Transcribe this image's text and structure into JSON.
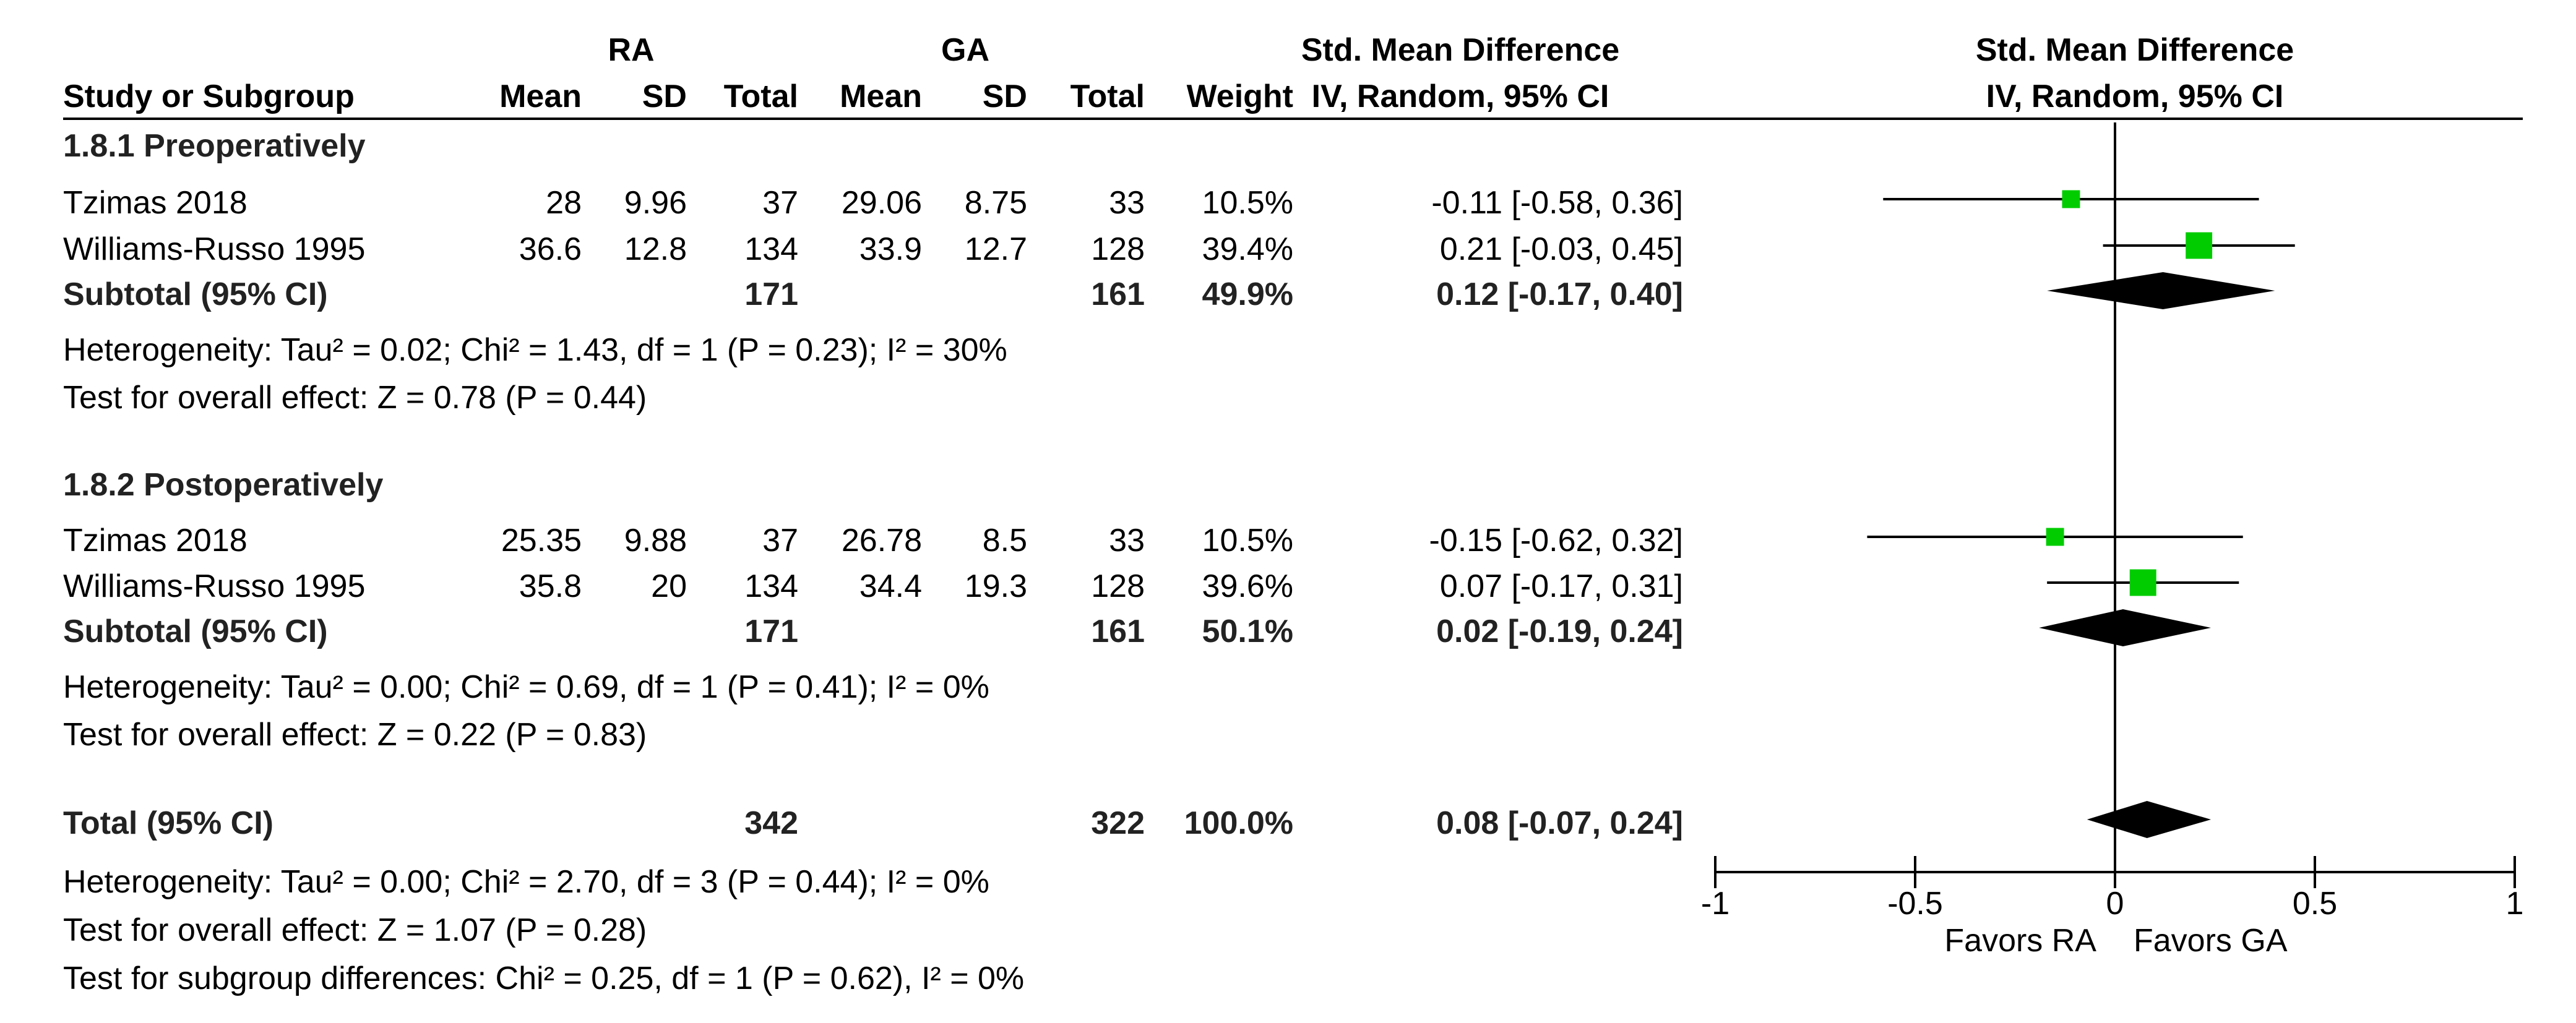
{
  "header": {
    "ra": "RA",
    "ga": "GA",
    "smd_title": "Std. Mean Difference",
    "smd_method": "IV, Random, 95% CI",
    "columns": [
      "Study or Subgroup",
      "Mean",
      "SD",
      "Total",
      "Mean",
      "SD",
      "Total",
      "Weight"
    ]
  },
  "groups": [
    {
      "title": "1.8.1 Preoperatively",
      "studies": [
        {
          "name": "Tzimas 2018",
          "ra_mean": "28",
          "ra_sd": "9.96",
          "ra_total": "37",
          "ga_mean": "29.06",
          "ga_sd": "8.75",
          "ga_total": "33",
          "weight": "10.5%",
          "ci": "-0.11 [-0.58, 0.36]"
        },
        {
          "name": "Williams-Russo 1995",
          "ra_mean": "36.6",
          "ra_sd": "12.8",
          "ra_total": "134",
          "ga_mean": "33.9",
          "ga_sd": "12.7",
          "ga_total": "128",
          "weight": "39.4%",
          "ci": "0.21 [-0.03, 0.45]"
        }
      ],
      "subtotal": {
        "label": "Subtotal (95% CI)",
        "ra_total": "171",
        "ga_total": "161",
        "weight": "49.9%",
        "ci": "0.12 [-0.17, 0.40]"
      },
      "heterogeneity": "Heterogeneity: Tau² = 0.02; Chi² = 1.43, df = 1 (P = 0.23); I² = 30%",
      "overall": "Test for overall effect: Z = 0.78 (P = 0.44)"
    },
    {
      "title": "1.8.2 Postoperatively",
      "studies": [
        {
          "name": "Tzimas 2018",
          "ra_mean": "25.35",
          "ra_sd": "9.88",
          "ra_total": "37",
          "ga_mean": "26.78",
          "ga_sd": "8.5",
          "ga_total": "33",
          "weight": "10.5%",
          "ci": "-0.15 [-0.62, 0.32]"
        },
        {
          "name": "Williams-Russo 1995",
          "ra_mean": "35.8",
          "ra_sd": "20",
          "ra_total": "134",
          "ga_mean": "34.4",
          "ga_sd": "19.3",
          "ga_total": "128",
          "weight": "39.6%",
          "ci": "0.07 [-0.17, 0.31]"
        }
      ],
      "subtotal": {
        "label": "Subtotal (95% CI)",
        "ra_total": "171",
        "ga_total": "161",
        "weight": "50.1%",
        "ci": "0.02 [-0.19, 0.24]"
      },
      "heterogeneity": "Heterogeneity: Tau² = 0.00; Chi² = 0.69, df = 1 (P = 0.41); I² = 0%",
      "overall": "Test for overall effect: Z = 0.22 (P = 0.83)"
    }
  ],
  "total": {
    "label": "Total (95% CI)",
    "ra_total": "342",
    "ga_total": "322",
    "weight": "100.0%",
    "ci": "0.08 [-0.07, 0.24]"
  },
  "footer": {
    "heterogeneity": "Heterogeneity: Tau² = 0.00; Chi² = 2.70, df = 3 (P = 0.44); I² = 0%",
    "overall": "Test for overall effect: Z = 1.07 (P = 0.28)",
    "subgroup": "Test for subgroup differences: Chi² = 0.25, df = 1 (P = 0.62), I² = 0%"
  },
  "colors": {
    "marker": "#00cc00",
    "line": "#000000"
  },
  "chart_data": {
    "type": "forest",
    "title": "Std. Mean Difference",
    "subtitle": "IV, Random, 95% CI",
    "xlim": [
      -1,
      1
    ],
    "ticks": [
      -1,
      -0.5,
      0,
      0.5,
      1
    ],
    "tick_labels": [
      "-1",
      "-0.5",
      "0",
      "0.5",
      "1"
    ],
    "favors_left": "Favors RA",
    "favors_right": "Favors GA",
    "studies": [
      {
        "group": "1.8.1 Preoperatively",
        "name": "Tzimas 2018",
        "est": -0.11,
        "lo": -0.58,
        "hi": 0.36,
        "weight": 10.5
      },
      {
        "group": "1.8.1 Preoperatively",
        "name": "Williams-Russo 1995",
        "est": 0.21,
        "lo": -0.03,
        "hi": 0.45,
        "weight": 39.4
      },
      {
        "group": "1.8.2 Postoperatively",
        "name": "Tzimas 2018",
        "est": -0.15,
        "lo": -0.62,
        "hi": 0.32,
        "weight": 10.5
      },
      {
        "group": "1.8.2 Postoperatively",
        "name": "Williams-Russo 1995",
        "est": 0.07,
        "lo": -0.17,
        "hi": 0.31,
        "weight": 39.6
      }
    ],
    "diamonds": [
      {
        "name": "Subtotal 1.8.1",
        "est": 0.12,
        "lo": -0.17,
        "hi": 0.4
      },
      {
        "name": "Subtotal 1.8.2",
        "est": 0.02,
        "lo": -0.19,
        "hi": 0.24
      },
      {
        "name": "Total",
        "est": 0.08,
        "lo": -0.07,
        "hi": 0.24
      }
    ]
  }
}
